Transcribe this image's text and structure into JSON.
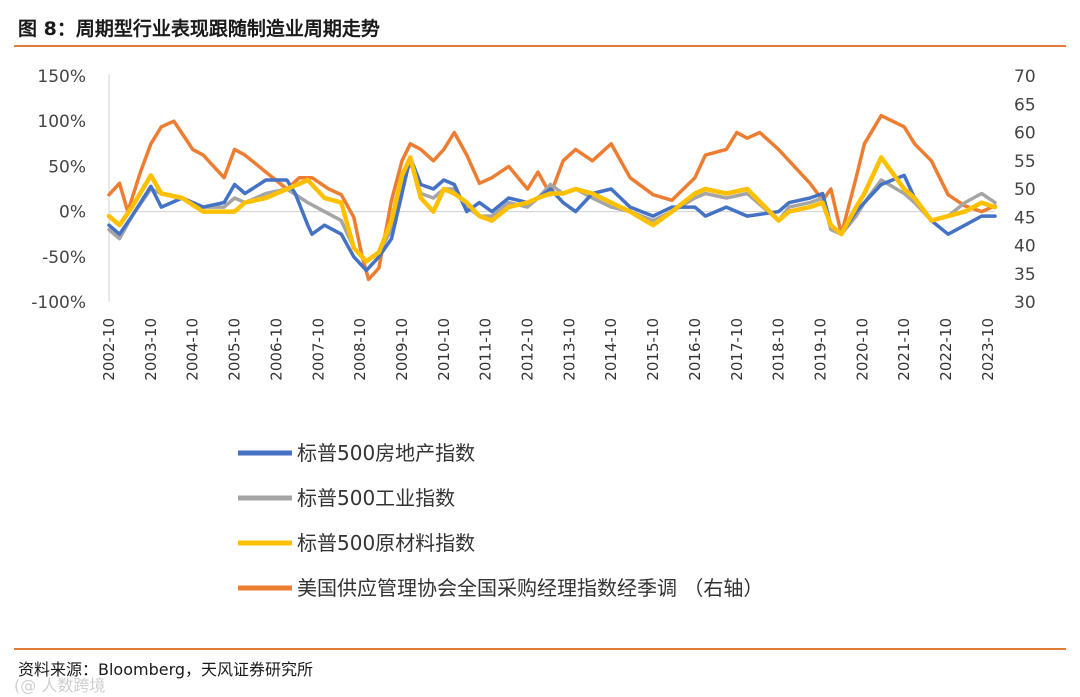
{
  "header": {
    "title": "图 8：周期型行业表现跟随制造业周期走势"
  },
  "footer": {
    "source": "资料来源：Bloomberg，天风证券研究所",
    "watermark": "(@ 人数跨境"
  },
  "colors": {
    "real_estate": "#4472c4",
    "industrials": "#a5a5a5",
    "materials": "#ffc000",
    "pmi": "#ed7d31",
    "rule": "#e07b39"
  },
  "chart_data": {
    "type": "line",
    "title": "周期型行业表现跟随制造业周期走势",
    "x_labels": [
      "2002-10",
      "2003-10",
      "2004-10",
      "2005-10",
      "2006-10",
      "2007-10",
      "2008-10",
      "2009-10",
      "2010-10",
      "2011-10",
      "2012-10",
      "2013-10",
      "2014-10",
      "2015-10",
      "2016-10",
      "2017-10",
      "2018-10",
      "2019-10",
      "2020-10",
      "2021-10",
      "2022-10",
      "2023-10"
    ],
    "x_range": [
      2002.75,
      2023.92
    ],
    "y_left": {
      "ticks": [
        "150%",
        "100%",
        "50%",
        "0%",
        "-50%",
        "-100%"
      ],
      "tick_values": [
        150,
        100,
        50,
        0,
        -50,
        -100
      ],
      "range": [
        -100,
        150
      ]
    },
    "y_right": {
      "ticks": [
        "70",
        "65",
        "60",
        "55",
        "50",
        "45",
        "40",
        "35",
        "30"
      ],
      "tick_values": [
        70,
        65,
        60,
        55,
        50,
        45,
        40,
        35,
        30
      ],
      "range": [
        30,
        70
      ]
    },
    "series": [
      {
        "name": "标普500房地产指数",
        "axis": "left",
        "color": "#4472c4",
        "points": [
          [
            2002.75,
            -15
          ],
          [
            2003.0,
            -25
          ],
          [
            2003.3,
            -5
          ],
          [
            2003.75,
            28
          ],
          [
            2004.0,
            5
          ],
          [
            2004.5,
            15
          ],
          [
            2005.0,
            5
          ],
          [
            2005.5,
            10
          ],
          [
            2005.75,
            30
          ],
          [
            2006.0,
            20
          ],
          [
            2006.5,
            35
          ],
          [
            2007.0,
            35
          ],
          [
            2007.2,
            20
          ],
          [
            2007.5,
            -15
          ],
          [
            2007.6,
            -25
          ],
          [
            2007.9,
            -15
          ],
          [
            2008.3,
            -25
          ],
          [
            2008.6,
            -50
          ],
          [
            2008.9,
            -65
          ],
          [
            2009.2,
            -50
          ],
          [
            2009.5,
            -30
          ],
          [
            2009.75,
            20
          ],
          [
            2009.95,
            60
          ],
          [
            2010.2,
            30
          ],
          [
            2010.5,
            25
          ],
          [
            2010.75,
            35
          ],
          [
            2011.0,
            30
          ],
          [
            2011.3,
            0
          ],
          [
            2011.6,
            10
          ],
          [
            2011.9,
            0
          ],
          [
            2012.3,
            15
          ],
          [
            2012.75,
            10
          ],
          [
            2013.0,
            15
          ],
          [
            2013.3,
            25
          ],
          [
            2013.6,
            10
          ],
          [
            2013.9,
            0
          ],
          [
            2014.3,
            20
          ],
          [
            2014.75,
            25
          ],
          [
            2015.2,
            5
          ],
          [
            2015.75,
            -5
          ],
          [
            2016.2,
            5
          ],
          [
            2016.75,
            5
          ],
          [
            2017.0,
            -5
          ],
          [
            2017.5,
            5
          ],
          [
            2018.0,
            -5
          ],
          [
            2018.75,
            0
          ],
          [
            2019.0,
            10
          ],
          [
            2019.5,
            15
          ],
          [
            2019.8,
            20
          ],
          [
            2020.0,
            -15
          ],
          [
            2020.25,
            -25
          ],
          [
            2020.6,
            0
          ],
          [
            2020.8,
            10
          ],
          [
            2021.2,
            30
          ],
          [
            2021.75,
            40
          ],
          [
            2022.0,
            15
          ],
          [
            2022.4,
            -10
          ],
          [
            2022.8,
            -25
          ],
          [
            2023.2,
            -15
          ],
          [
            2023.6,
            -5
          ],
          [
            2023.92,
            -5
          ]
        ]
      },
      {
        "name": "标普500工业指数",
        "axis": "left",
        "color": "#a5a5a5",
        "points": [
          [
            2002.75,
            -20
          ],
          [
            2003.0,
            -30
          ],
          [
            2003.3,
            -5
          ],
          [
            2003.75,
            25
          ],
          [
            2004.0,
            20
          ],
          [
            2004.5,
            15
          ],
          [
            2005.0,
            5
          ],
          [
            2005.5,
            5
          ],
          [
            2005.75,
            15
          ],
          [
            2006.0,
            10
          ],
          [
            2006.5,
            20
          ],
          [
            2007.0,
            25
          ],
          [
            2007.5,
            10
          ],
          [
            2007.9,
            0
          ],
          [
            2008.3,
            -10
          ],
          [
            2008.6,
            -40
          ],
          [
            2008.9,
            -55
          ],
          [
            2009.2,
            -45
          ],
          [
            2009.5,
            -20
          ],
          [
            2009.75,
            30
          ],
          [
            2009.95,
            55
          ],
          [
            2010.2,
            20
          ],
          [
            2010.5,
            15
          ],
          [
            2010.75,
            25
          ],
          [
            2011.0,
            25
          ],
          [
            2011.3,
            5
          ],
          [
            2011.6,
            -5
          ],
          [
            2011.9,
            -5
          ],
          [
            2012.3,
            10
          ],
          [
            2012.75,
            5
          ],
          [
            2013.0,
            15
          ],
          [
            2013.3,
            30
          ],
          [
            2013.6,
            20
          ],
          [
            2013.9,
            25
          ],
          [
            2014.3,
            15
          ],
          [
            2014.75,
            5
          ],
          [
            2015.2,
            0
          ],
          [
            2015.75,
            -10
          ],
          [
            2016.2,
            0
          ],
          [
            2016.75,
            15
          ],
          [
            2017.0,
            20
          ],
          [
            2017.5,
            15
          ],
          [
            2018.0,
            20
          ],
          [
            2018.75,
            -10
          ],
          [
            2019.0,
            5
          ],
          [
            2019.5,
            10
          ],
          [
            2019.8,
            15
          ],
          [
            2020.0,
            -20
          ],
          [
            2020.25,
            -25
          ],
          [
            2020.6,
            -5
          ],
          [
            2020.8,
            10
          ],
          [
            2021.2,
            35
          ],
          [
            2021.75,
            20
          ],
          [
            2022.0,
            10
          ],
          [
            2022.4,
            -10
          ],
          [
            2022.8,
            -5
          ],
          [
            2023.2,
            10
          ],
          [
            2023.6,
            20
          ],
          [
            2023.92,
            10
          ]
        ]
      },
      {
        "name": "标普500原材料指数",
        "axis": "left",
        "color": "#ffc000",
        "points": [
          [
            2002.75,
            -5
          ],
          [
            2003.0,
            -15
          ],
          [
            2003.3,
            5
          ],
          [
            2003.75,
            40
          ],
          [
            2004.0,
            20
          ],
          [
            2004.5,
            15
          ],
          [
            2005.0,
            0
          ],
          [
            2005.5,
            0
          ],
          [
            2005.75,
            0
          ],
          [
            2006.0,
            10
          ],
          [
            2006.5,
            15
          ],
          [
            2007.0,
            25
          ],
          [
            2007.5,
            35
          ],
          [
            2007.9,
            15
          ],
          [
            2008.3,
            10
          ],
          [
            2008.6,
            -40
          ],
          [
            2008.9,
            -55
          ],
          [
            2009.2,
            -45
          ],
          [
            2009.5,
            -10
          ],
          [
            2009.75,
            40
          ],
          [
            2009.95,
            60
          ],
          [
            2010.2,
            15
          ],
          [
            2010.5,
            0
          ],
          [
            2010.75,
            25
          ],
          [
            2011.0,
            20
          ],
          [
            2011.3,
            10
          ],
          [
            2011.6,
            -5
          ],
          [
            2011.9,
            -10
          ],
          [
            2012.3,
            5
          ],
          [
            2012.75,
            10
          ],
          [
            2013.0,
            15
          ],
          [
            2013.3,
            20
          ],
          [
            2013.6,
            20
          ],
          [
            2013.9,
            25
          ],
          [
            2014.3,
            20
          ],
          [
            2014.75,
            10
          ],
          [
            2015.2,
            0
          ],
          [
            2015.75,
            -15
          ],
          [
            2016.2,
            0
          ],
          [
            2016.75,
            20
          ],
          [
            2017.0,
            25
          ],
          [
            2017.5,
            20
          ],
          [
            2018.0,
            25
          ],
          [
            2018.75,
            -10
          ],
          [
            2019.0,
            0
          ],
          [
            2019.5,
            5
          ],
          [
            2019.8,
            10
          ],
          [
            2020.0,
            -15
          ],
          [
            2020.25,
            -25
          ],
          [
            2020.6,
            5
          ],
          [
            2020.8,
            20
          ],
          [
            2021.2,
            60
          ],
          [
            2021.75,
            25
          ],
          [
            2022.0,
            15
          ],
          [
            2022.4,
            -10
          ],
          [
            2022.8,
            -5
          ],
          [
            2023.2,
            0
          ],
          [
            2023.6,
            10
          ],
          [
            2023.92,
            5
          ]
        ]
      },
      {
        "name": "美国供应管理协会全国采购经理指数经季调 （右轴）",
        "axis": "right",
        "color": "#ed7d31",
        "points": [
          [
            2002.75,
            49
          ],
          [
            2003.0,
            51
          ],
          [
            2003.2,
            46
          ],
          [
            2003.5,
            53
          ],
          [
            2003.75,
            58
          ],
          [
            2004.0,
            61
          ],
          [
            2004.3,
            62
          ],
          [
            2004.75,
            57
          ],
          [
            2005.0,
            56
          ],
          [
            2005.5,
            52
          ],
          [
            2005.75,
            57
          ],
          [
            2006.0,
            56
          ],
          [
            2006.5,
            53
          ],
          [
            2007.0,
            50
          ],
          [
            2007.3,
            52
          ],
          [
            2007.6,
            52
          ],
          [
            2008.0,
            50
          ],
          [
            2008.3,
            49
          ],
          [
            2008.6,
            45
          ],
          [
            2008.8,
            38
          ],
          [
            2008.95,
            34
          ],
          [
            2009.2,
            36
          ],
          [
            2009.5,
            48
          ],
          [
            2009.75,
            55
          ],
          [
            2009.95,
            58
          ],
          [
            2010.2,
            57
          ],
          [
            2010.5,
            55
          ],
          [
            2010.75,
            57
          ],
          [
            2011.0,
            60
          ],
          [
            2011.3,
            56
          ],
          [
            2011.6,
            51
          ],
          [
            2011.9,
            52
          ],
          [
            2012.3,
            54
          ],
          [
            2012.75,
            50
          ],
          [
            2013.0,
            53
          ],
          [
            2013.3,
            49
          ],
          [
            2013.6,
            55
          ],
          [
            2013.9,
            57
          ],
          [
            2014.3,
            55
          ],
          [
            2014.75,
            58
          ],
          [
            2015.2,
            52
          ],
          [
            2015.75,
            49
          ],
          [
            2016.2,
            48
          ],
          [
            2016.75,
            52
          ],
          [
            2017.0,
            56
          ],
          [
            2017.5,
            57
          ],
          [
            2017.75,
            60
          ],
          [
            2018.0,
            59
          ],
          [
            2018.3,
            60
          ],
          [
            2018.75,
            57
          ],
          [
            2019.0,
            55
          ],
          [
            2019.5,
            51
          ],
          [
            2019.8,
            48
          ],
          [
            2020.0,
            50
          ],
          [
            2020.25,
            42
          ],
          [
            2020.6,
            52
          ],
          [
            2020.8,
            58
          ],
          [
            2021.2,
            63
          ],
          [
            2021.75,
            61
          ],
          [
            2022.0,
            58
          ],
          [
            2022.4,
            55
          ],
          [
            2022.8,
            49
          ],
          [
            2023.2,
            47
          ],
          [
            2023.6,
            46
          ],
          [
            2023.92,
            47
          ]
        ]
      }
    ]
  }
}
